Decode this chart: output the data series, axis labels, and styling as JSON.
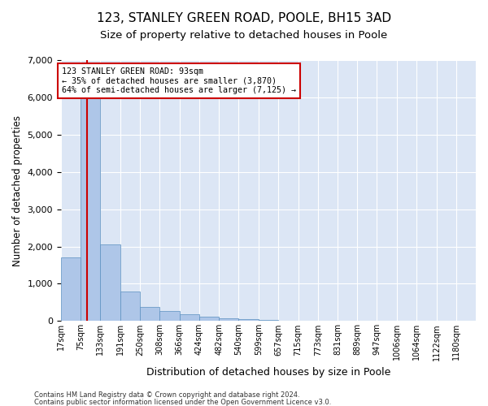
{
  "title": "123, STANLEY GREEN ROAD, POOLE, BH15 3AD",
  "subtitle": "Size of property relative to detached houses in Poole",
  "xlabel": "Distribution of detached houses by size in Poole",
  "ylabel": "Number of detached properties",
  "bin_labels": [
    "17sqm",
    "75sqm",
    "133sqm",
    "191sqm",
    "250sqm",
    "308sqm",
    "366sqm",
    "424sqm",
    "482sqm",
    "540sqm",
    "599sqm",
    "657sqm",
    "715sqm",
    "773sqm",
    "831sqm",
    "889sqm",
    "947sqm",
    "1006sqm",
    "1064sqm",
    "1122sqm",
    "1180sqm"
  ],
  "bin_edges": [
    17,
    75,
    133,
    191,
    250,
    308,
    366,
    424,
    482,
    540,
    599,
    657,
    715,
    773,
    831,
    889,
    947,
    1006,
    1064,
    1122,
    1180
  ],
  "bar_heights": [
    1700,
    6450,
    2050,
    800,
    370,
    260,
    175,
    120,
    80,
    50,
    30,
    0,
    0,
    0,
    0,
    0,
    0,
    0,
    0,
    0
  ],
  "bar_color": "#aec6e8",
  "bar_edge_color": "#5a8fc0",
  "property_size": 93,
  "property_line_color": "#cc0000",
  "annotation_line1": "123 STANLEY GREEN ROAD: 93sqm",
  "annotation_line2": "← 35% of detached houses are smaller (3,870)",
  "annotation_line3": "64% of semi-detached houses are larger (7,125) →",
  "annotation_box_color": "#cc0000",
  "ylim": [
    0,
    7000
  ],
  "yticks": [
    0,
    1000,
    2000,
    3000,
    4000,
    5000,
    6000,
    7000
  ],
  "background_color": "#dce6f5",
  "footer_line1": "Contains HM Land Registry data © Crown copyright and database right 2024.",
  "footer_line2": "Contains public sector information licensed under the Open Government Licence v3.0.",
  "title_fontsize": 11,
  "subtitle_fontsize": 9.5,
  "ylabel_fontsize": 8.5,
  "xlabel_fontsize": 9
}
